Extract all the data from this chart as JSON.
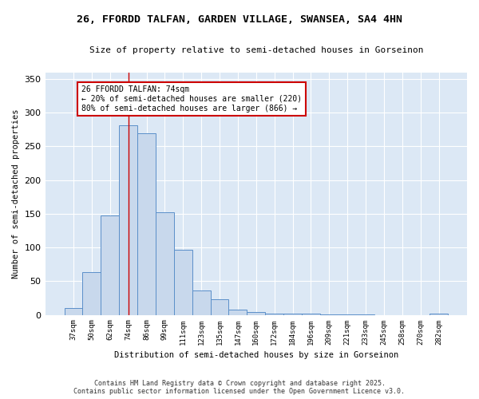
{
  "title_line1": "26, FFORDD TALFAN, GARDEN VILLAGE, SWANSEA, SA4 4HN",
  "title_line2": "Size of property relative to semi-detached houses in Gorseinon",
  "xlabel": "Distribution of semi-detached houses by size in Gorseinon",
  "ylabel": "Number of semi-detached properties",
  "categories": [
    "37sqm",
    "50sqm",
    "62sqm",
    "74sqm",
    "86sqm",
    "99sqm",
    "111sqm",
    "123sqm",
    "135sqm",
    "147sqm",
    "160sqm",
    "172sqm",
    "184sqm",
    "196sqm",
    "209sqm",
    "221sqm",
    "233sqm",
    "245sqm",
    "258sqm",
    "270sqm",
    "282sqm"
  ],
  "values": [
    10,
    63,
    148,
    281,
    270,
    152,
    97,
    36,
    23,
    8,
    4,
    2,
    2,
    2,
    1,
    1,
    1,
    0,
    0,
    0,
    2
  ],
  "bar_color": "#c8d8ec",
  "bar_edge_color": "#5b8fc9",
  "plot_bg_color": "#dce8f5",
  "fig_bg_color": "#ffffff",
  "grid_color": "#ffffff",
  "vline_x_idx": 3,
  "vline_color": "#cc0000",
  "annotation_title": "26 FFORDD TALFAN: 74sqm",
  "annotation_line1": "← 20% of semi-detached houses are smaller (220)",
  "annotation_line2": "80% of semi-detached houses are larger (866) →",
  "annotation_box_edge_color": "#cc0000",
  "annotation_box_face_color": "#ffffff",
  "ylim": [
    0,
    360
  ],
  "yticks": [
    0,
    50,
    100,
    150,
    200,
    250,
    300,
    350
  ],
  "footnote1": "Contains HM Land Registry data © Crown copyright and database right 2025.",
  "footnote2": "Contains public sector information licensed under the Open Government Licence v3.0."
}
